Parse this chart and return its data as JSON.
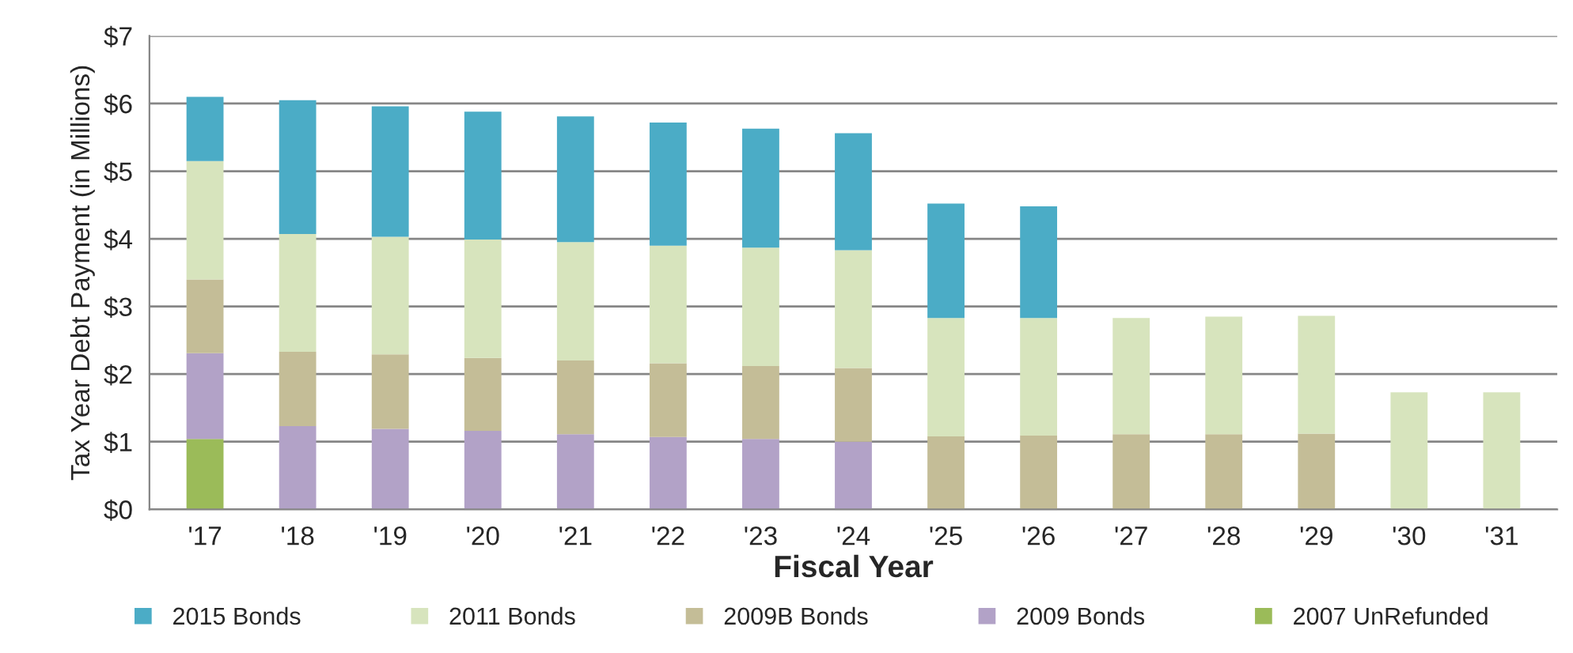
{
  "chart_data": {
    "type": "bar",
    "stacked": true,
    "xlabel": "Fiscal Year",
    "ylabel": "Tax Year Debt Payment (in Millions)",
    "categories": [
      "'17",
      "'18",
      "'19",
      "'20",
      "'21",
      "'22",
      "'23",
      "'24",
      "'25",
      "'26",
      "'27",
      "'28",
      "'29",
      "'30",
      "'31"
    ],
    "series": [
      {
        "name": "2007 UnRefunded",
        "color": "#9bbb59",
        "values": [
          1.04,
          null,
          null,
          null,
          null,
          null,
          null,
          null,
          null,
          null,
          null,
          null,
          null,
          null,
          null
        ]
      },
      {
        "name": "2009 Bonds",
        "color": "#b2a2c7",
        "values": [
          1.27,
          1.23,
          1.19,
          1.16,
          1.11,
          1.07,
          1.04,
          1.0,
          null,
          null,
          null,
          null,
          null,
          null,
          null
        ]
      },
      {
        "name": "2009B Bonds",
        "color": "#c4bd97",
        "values": [
          1.09,
          1.1,
          1.1,
          1.08,
          1.09,
          1.09,
          1.08,
          1.09,
          1.08,
          1.09,
          1.11,
          1.11,
          1.12,
          null,
          null
        ]
      },
      {
        "name": "2011 Bonds",
        "color": "#d7e4bd",
        "values": [
          1.75,
          1.74,
          1.74,
          1.75,
          1.75,
          1.74,
          1.75,
          1.74,
          1.75,
          1.74,
          1.72,
          1.74,
          1.74,
          1.73,
          1.73
        ]
      },
      {
        "name": "2015 Bonds",
        "color": "#4bacc6",
        "values": [
          0.95,
          1.98,
          1.93,
          1.89,
          1.86,
          1.82,
          1.76,
          1.73,
          1.69,
          1.65,
          null,
          null,
          null,
          null,
          null
        ]
      }
    ],
    "ylim": [
      0,
      7
    ],
    "yticks": [
      {
        "value": 0,
        "label": "$0"
      },
      {
        "value": 1,
        "label": "$1"
      },
      {
        "value": 2,
        "label": "$2"
      },
      {
        "value": 3,
        "label": "$3"
      },
      {
        "value": 4,
        "label": "$4"
      },
      {
        "value": 5,
        "label": "$5"
      },
      {
        "value": 6,
        "label": "$6"
      },
      {
        "value": 7,
        "label": "$7"
      }
    ],
    "grid": "y",
    "legend": "bottom"
  }
}
